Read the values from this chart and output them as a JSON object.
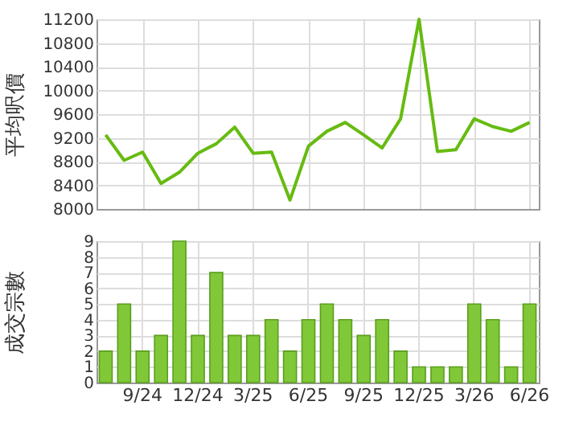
{
  "chart_data": [
    {
      "type": "line",
      "ylabel": "平均呎價",
      "categories": [
        null,
        null,
        null,
        null,
        null,
        null,
        null,
        null,
        null,
        null,
        null,
        null,
        null,
        null,
        null,
        null,
        null,
        null,
        null,
        null,
        null,
        null,
        null,
        null
      ],
      "series": [
        {
          "color": "#66bb11",
          "values": [
            9250,
            8820,
            8960,
            8430,
            8620,
            8940,
            9100,
            9380,
            8940,
            8960,
            8150,
            9060,
            9310,
            9460,
            9250,
            9030,
            9520,
            11200,
            8970,
            9000,
            9520,
            9390,
            9310,
            9460
          ]
        }
      ],
      "ylim": [
        8000,
        11200
      ],
      "yticks": [
        8000,
        8400,
        8800,
        9200,
        9600,
        10000,
        10400,
        10800,
        11200
      ],
      "grid": true,
      "tick_labels": "y",
      "marker": "none",
      "line_style": "solid"
    },
    {
      "type": "bar",
      "ylabel": "成交宗數",
      "categories": [
        null,
        null,
        "9/24",
        null,
        null,
        "12/24",
        null,
        null,
        "3/25",
        null,
        null,
        "6/25",
        null,
        null,
        "9/25",
        null,
        null,
        "12/25",
        null,
        null,
        "3/26",
        null,
        null,
        "6/26"
      ],
      "series": [
        {
          "color": "#80c838",
          "values": [
            2,
            5,
            2,
            3,
            9,
            3,
            7,
            3,
            3,
            4,
            2,
            4,
            5,
            4,
            3,
            4,
            2,
            1,
            1,
            1,
            5,
            4,
            1,
            5
          ]
        }
      ],
      "ylim": [
        0,
        9
      ],
      "yticks": [
        0,
        1,
        2,
        3,
        4,
        5,
        6,
        7,
        8,
        9
      ],
      "grid": true
    }
  ]
}
